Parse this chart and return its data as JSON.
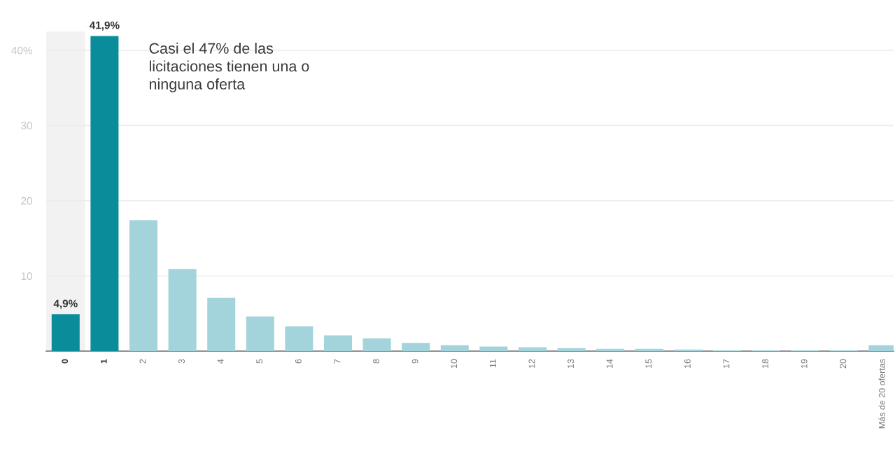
{
  "chart_data": {
    "type": "bar",
    "categories": [
      "0",
      "1",
      "2",
      "3",
      "4",
      "5",
      "6",
      "7",
      "8",
      "9",
      "10",
      "11",
      "12",
      "13",
      "14",
      "15",
      "16",
      "17",
      "18",
      "19",
      "20",
      "Más de 20 ofertas"
    ],
    "values": [
      4.9,
      41.9,
      17.4,
      10.9,
      7.1,
      4.6,
      3.3,
      2.1,
      1.7,
      1.1,
      0.8,
      0.6,
      0.5,
      0.4,
      0.3,
      0.3,
      0.2,
      0.1,
      0.1,
      0.1,
      0.1,
      0.8
    ],
    "colors": [
      "#0a8c9b",
      "#0a8c9b",
      "#a3d4dc",
      "#a3d4dc",
      "#a3d4dc",
      "#a3d4dc",
      "#a3d4dc",
      "#a3d4dc",
      "#a3d4dc",
      "#a3d4dc",
      "#a3d4dc",
      "#a3d4dc",
      "#a3d4dc",
      "#a3d4dc",
      "#a3d4dc",
      "#a3d4dc",
      "#a3d4dc",
      "#a3d4dc",
      "#a3d4dc",
      "#a3d4dc",
      "#a3d4dc",
      "#a3d4dc"
    ],
    "value_labels": [
      "4,9%",
      "41,9%",
      null,
      null,
      null,
      null,
      null,
      null,
      null,
      null,
      null,
      null,
      null,
      null,
      null,
      null,
      null,
      null,
      null,
      null,
      null,
      null
    ],
    "ylim": [
      0,
      42.5
    ],
    "yticks": [
      10,
      20,
      30,
      {
        "value": 40,
        "label": "40%"
      }
    ],
    "grid": "y",
    "bands": [
      {
        "axis": "x",
        "from": "0",
        "to": "0",
        "color": "#f2f2f2"
      }
    ],
    "annotations": [
      "Casi el 47% de las\nlicitaciones tienen una o\nninguna oferta"
    ]
  }
}
